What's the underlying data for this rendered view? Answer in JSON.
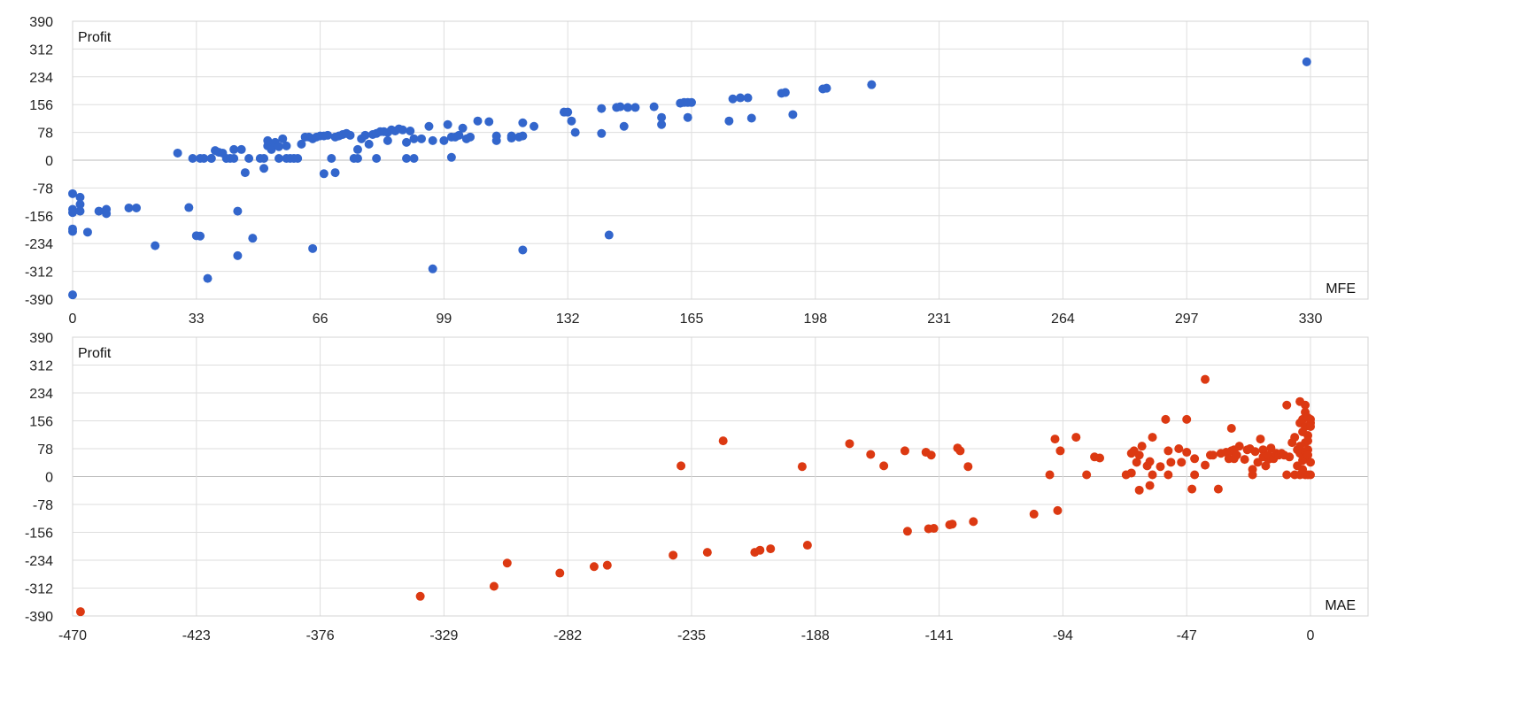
{
  "chart_data": [
    {
      "type": "scatter",
      "title": "",
      "xlabel": "MFE",
      "ylabel": "Profit",
      "xlim": [
        0,
        330
      ],
      "ylim": [
        -390,
        390
      ],
      "x_ticks": [
        "0",
        "33",
        "66",
        "99",
        "132",
        "165",
        "198",
        "231",
        "264",
        "297",
        "330"
      ],
      "y_ticks": [
        "390",
        "312",
        "234",
        "156",
        "78",
        "0",
        "-78",
        "-156",
        "-234",
        "-312",
        "-390"
      ],
      "grid": true,
      "color": "#3366cc",
      "series": [
        {
          "values": [
            [
              0,
              -94
            ],
            [
              0,
              -138
            ],
            [
              0,
              -147
            ],
            [
              0,
              -193
            ],
            [
              0,
              -200
            ],
            [
              0,
              -378
            ],
            [
              2,
              -104
            ],
            [
              2,
              -124
            ],
            [
              2,
              -143
            ],
            [
              4,
              -202
            ],
            [
              7,
              -143
            ],
            [
              9,
              -138
            ],
            [
              9,
              -150
            ],
            [
              15,
              -134
            ],
            [
              17,
              -134
            ],
            [
              22,
              -240
            ],
            [
              28,
              20
            ],
            [
              31,
              -133
            ],
            [
              32,
              5
            ],
            [
              33,
              -212
            ],
            [
              34,
              -213
            ],
            [
              34,
              5
            ],
            [
              35,
              5
            ],
            [
              36,
              -332
            ],
            [
              37,
              5
            ],
            [
              37,
              5
            ],
            [
              38,
              27
            ],
            [
              39,
              22
            ],
            [
              40,
              20
            ],
            [
              41,
              5
            ],
            [
              42,
              5
            ],
            [
              43,
              5
            ],
            [
              43,
              30
            ],
            [
              44,
              -143
            ],
            [
              44,
              -268
            ],
            [
              45,
              30
            ],
            [
              46,
              -35
            ],
            [
              47,
              5
            ],
            [
              48,
              -219
            ],
            [
              50,
              5
            ],
            [
              51,
              -23
            ],
            [
              51,
              5
            ],
            [
              52,
              40
            ],
            [
              52,
              55
            ],
            [
              53,
              30
            ],
            [
              54,
              50
            ],
            [
              55,
              5
            ],
            [
              55,
              38
            ],
            [
              56,
              60
            ],
            [
              57,
              5
            ],
            [
              57,
              40
            ],
            [
              58,
              5
            ],
            [
              59,
              5
            ],
            [
              60,
              5
            ],
            [
              61,
              45
            ],
            [
              62,
              65
            ],
            [
              63,
              65
            ],
            [
              64,
              60
            ],
            [
              64,
              -248
            ],
            [
              65,
              65
            ],
            [
              66,
              68
            ],
            [
              67,
              68
            ],
            [
              67,
              -38
            ],
            [
              68,
              70
            ],
            [
              69,
              5
            ],
            [
              70,
              65
            ],
            [
              70,
              -35
            ],
            [
              71,
              68
            ],
            [
              72,
              72
            ],
            [
              73,
              75
            ],
            [
              74,
              70
            ],
            [
              75,
              5
            ],
            [
              76,
              5
            ],
            [
              76,
              30
            ],
            [
              77,
              60
            ],
            [
              78,
              70
            ],
            [
              79,
              45
            ],
            [
              80,
              72
            ],
            [
              81,
              75
            ],
            [
              81,
              5
            ],
            [
              82,
              80
            ],
            [
              83,
              80
            ],
            [
              84,
              55
            ],
            [
              84,
              78
            ],
            [
              85,
              85
            ],
            [
              86,
              82
            ],
            [
              87,
              88
            ],
            [
              88,
              85
            ],
            [
              89,
              5
            ],
            [
              89,
              50
            ],
            [
              90,
              82
            ],
            [
              91,
              5
            ],
            [
              91,
              60
            ],
            [
              93,
              60
            ],
            [
              95,
              95
            ],
            [
              96,
              55
            ],
            [
              96,
              -305
            ],
            [
              99,
              55
            ],
            [
              100,
              100
            ],
            [
              101,
              65
            ],
            [
              101,
              8
            ],
            [
              102,
              65
            ],
            [
              103,
              70
            ],
            [
              104,
              90
            ],
            [
              105,
              60
            ],
            [
              106,
              65
            ],
            [
              108,
              110
            ],
            [
              111,
              108
            ],
            [
              113,
              55
            ],
            [
              113,
              68
            ],
            [
              117,
              62
            ],
            [
              117,
              68
            ],
            [
              119,
              65
            ],
            [
              120,
              105
            ],
            [
              120,
              68
            ],
            [
              123,
              95
            ],
            [
              120,
              -252
            ],
            [
              131,
              135
            ],
            [
              132,
              135
            ],
            [
              133,
              110
            ],
            [
              134,
              78
            ],
            [
              141,
              145
            ],
            [
              141,
              75
            ],
            [
              143,
              -210
            ],
            [
              145,
              148
            ],
            [
              146,
              150
            ],
            [
              147,
              95
            ],
            [
              148,
              148
            ],
            [
              150,
              148
            ],
            [
              155,
              150
            ],
            [
              157,
              120
            ],
            [
              157,
              100
            ],
            [
              162,
              160
            ],
            [
              163,
              162
            ],
            [
              164,
              162
            ],
            [
              164,
              120
            ],
            [
              165,
              162
            ],
            [
              175,
              110
            ],
            [
              176,
              172
            ],
            [
              178,
              175
            ],
            [
              180,
              175
            ],
            [
              181,
              118
            ],
            [
              189,
              188
            ],
            [
              190,
              190
            ],
            [
              192,
              128
            ],
            [
              200,
              200
            ],
            [
              201,
              202
            ],
            [
              213,
              212
            ],
            [
              329,
              276
            ]
          ]
        }
      ]
    },
    {
      "type": "scatter",
      "title": "",
      "xlabel": "MAE",
      "ylabel": "Profit",
      "xlim": [
        -470,
        0
      ],
      "ylim": [
        -390,
        390
      ],
      "x_ticks": [
        "-470",
        "-423",
        "-376",
        "-329",
        "-282",
        "-235",
        "-188",
        "-141",
        "-94",
        "-47",
        "0"
      ],
      "y_ticks": [
        "390",
        "312",
        "234",
        "156",
        "78",
        "0",
        "-78",
        "-156",
        "-234",
        "-312",
        "-390"
      ],
      "grid": true,
      "color": "#dc3912",
      "series": [
        {
          "values": [
            [
              -467,
              -378
            ],
            [
              -338,
              -335
            ],
            [
              -310,
              -307
            ],
            [
              -305,
              -242
            ],
            [
              -285,
              -270
            ],
            [
              -272,
              -252
            ],
            [
              -267,
              -248
            ],
            [
              -242,
              -220
            ],
            [
              -239,
              30
            ],
            [
              -229,
              -212
            ],
            [
              -223,
              100
            ],
            [
              -211,
              -212
            ],
            [
              -209,
              -206
            ],
            [
              -205,
              -202
            ],
            [
              -193,
              28
            ],
            [
              -191,
              -192
            ],
            [
              -175,
              92
            ],
            [
              -167,
              62
            ],
            [
              -162,
              30
            ],
            [
              -154,
              72
            ],
            [
              -153,
              -153
            ],
            [
              -146,
              68
            ],
            [
              -145,
              -146
            ],
            [
              -144,
              60
            ],
            [
              -143,
              -145
            ],
            [
              -137,
              -135
            ],
            [
              -136,
              -133
            ],
            [
              -134,
              80
            ],
            [
              -133,
              72
            ],
            [
              -130,
              28
            ],
            [
              -128,
              -126
            ],
            [
              -105,
              -105
            ],
            [
              -99,
              5
            ],
            [
              -97,
              105
            ],
            [
              -96,
              -95
            ],
            [
              -95,
              72
            ],
            [
              -89,
              110
            ],
            [
              -85,
              5
            ],
            [
              -82,
              55
            ],
            [
              -80,
              52
            ],
            [
              -70,
              5
            ],
            [
              -68,
              65
            ],
            [
              -68,
              10
            ],
            [
              -67,
              72
            ],
            [
              -66,
              40
            ],
            [
              -65,
              60
            ],
            [
              -65,
              -38
            ],
            [
              -64,
              85
            ],
            [
              -62,
              30
            ],
            [
              -61,
              42
            ],
            [
              -61,
              -25
            ],
            [
              -60,
              110
            ],
            [
              -60,
              5
            ],
            [
              -57,
              28
            ],
            [
              -55,
              160
            ],
            [
              -54,
              5
            ],
            [
              -54,
              72
            ],
            [
              -53,
              40
            ],
            [
              -50,
              78
            ],
            [
              -49,
              40
            ],
            [
              -47,
              160
            ],
            [
              -47,
              68
            ],
            [
              -45,
              -35
            ],
            [
              -44,
              5
            ],
            [
              -44,
              50
            ],
            [
              -40,
              32
            ],
            [
              -40,
              272
            ],
            [
              -38,
              60
            ],
            [
              -37,
              60
            ],
            [
              -35,
              -35
            ],
            [
              -34,
              65
            ],
            [
              -32,
              68
            ],
            [
              -31,
              50
            ],
            [
              -30,
              135
            ],
            [
              -30,
              72
            ],
            [
              -29,
              75
            ],
            [
              -29,
              50
            ],
            [
              -28,
              60
            ],
            [
              -27,
              85
            ],
            [
              -25,
              48
            ],
            [
              -24,
              75
            ],
            [
              -23,
              78
            ],
            [
              -22,
              20
            ],
            [
              -22,
              5
            ],
            [
              -21,
              70
            ],
            [
              -20,
              40
            ],
            [
              -19,
              105
            ],
            [
              -18,
              75
            ],
            [
              -18,
              55
            ],
            [
              -17,
              30
            ],
            [
              -16,
              48
            ],
            [
              -16,
              60
            ],
            [
              -15,
              80
            ],
            [
              -14,
              50
            ],
            [
              -13,
              65
            ],
            [
              -12,
              60
            ],
            [
              -11,
              65
            ],
            [
              -10,
              60
            ],
            [
              -9,
              5
            ],
            [
              -9,
              200
            ],
            [
              -8,
              55
            ],
            [
              -7,
              95
            ],
            [
              -6,
              110
            ],
            [
              -6,
              5
            ],
            [
              -5,
              75
            ],
            [
              -5,
              30
            ],
            [
              -4,
              210
            ],
            [
              -4,
              150
            ],
            [
              -4,
              85
            ],
            [
              -4,
              65
            ],
            [
              -4,
              5
            ],
            [
              -3,
              160
            ],
            [
              -3,
              125
            ],
            [
              -3,
              45
            ],
            [
              -3,
              20
            ],
            [
              -2,
              200
            ],
            [
              -2,
              180
            ],
            [
              -2,
              140
            ],
            [
              -2,
              95
            ],
            [
              -2,
              70
            ],
            [
              -2,
              50
            ],
            [
              -2,
              5
            ],
            [
              -1,
              165
            ],
            [
              -1,
              115
            ],
            [
              -1,
              100
            ],
            [
              -1,
              75
            ],
            [
              -1,
              60
            ],
            [
              -1,
              5
            ],
            [
              0,
              150
            ],
            [
              0,
              160
            ],
            [
              0,
              140
            ],
            [
              0,
              40
            ],
            [
              0,
              5
            ]
          ]
        }
      ]
    }
  ]
}
